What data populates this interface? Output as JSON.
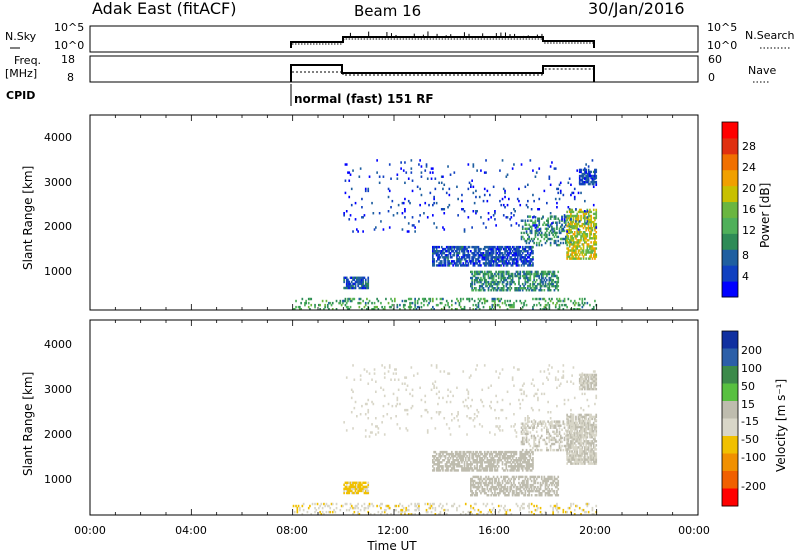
{
  "header": {
    "station": "Adak East (fitACF)",
    "beam": "Beam 16",
    "date": "30/Jan/2016"
  },
  "labels": {
    "nsky": "N.Sky",
    "freq_line1": "Freq.",
    "freq_line2": "[MHz]",
    "cpid": "CPID",
    "nsearch": "N.Search",
    "nave": "Nave",
    "cpid_text": "normal (fast) 151 RF",
    "time_axis": "Time UT",
    "slant_range": "Slant Range [km]",
    "power_label": "Power [dB]",
    "velocity_label": "Velocity [m s⁻¹]"
  },
  "noise_axis": {
    "left_ticks": [
      "10^5",
      "10^0"
    ],
    "right_ticks": [
      "10^5",
      "10^0"
    ]
  },
  "freq_axis": {
    "left_ticks": [
      "18",
      "8"
    ],
    "right_ticks": [
      "60",
      "0"
    ]
  },
  "x_ticks": [
    "00:00",
    "04:00",
    "08:00",
    "12:00",
    "16:00",
    "20:00",
    "00:00"
  ],
  "y_ticks": [
    "1000",
    "2000",
    "3000",
    "4000"
  ],
  "power_scale": {
    "ticks": [
      "4",
      "8",
      "12",
      "16",
      "20",
      "24",
      "28"
    ],
    "colors": [
      "#0000ff",
      "#1040c0",
      "#1f5fa0",
      "#2e8b57",
      "#4fb05a",
      "#6ab640",
      "#c8c000",
      "#f0a000",
      "#f07000",
      "#e03010",
      "#ff0000"
    ]
  },
  "velocity_scale": {
    "ticks": [
      "200",
      "100",
      "50",
      "15",
      "-15",
      "-50",
      "-100",
      "-200"
    ],
    "colors": [
      "#1030a0",
      "#2c5fa8",
      "#3c8a4a",
      "#58c040",
      "#bebcae",
      "#d8d6c8",
      "#f0c000",
      "#f09000",
      "#f06000",
      "#ff0000"
    ]
  },
  "chart_data": [
    {
      "type": "heatmap",
      "title": "Power",
      "xlabel": "",
      "ylabel": "Slant Range [km]",
      "xlim": [
        "00:00",
        "24:00"
      ],
      "ylim": [
        180,
        4500
      ],
      "colorbar": {
        "label": "Power [dB]",
        "range": [
          0,
          32
        ]
      },
      "data_window": [
        "08:00",
        "20:00"
      ],
      "clusters": [
        {
          "t_start": 8.0,
          "t_end": 20.0,
          "r_start": 180,
          "r_end": 450,
          "level": 12,
          "density": 0.25
        },
        {
          "t_start": 10.0,
          "t_end": 11.0,
          "r_start": 650,
          "r_end": 900,
          "level": 6,
          "density": 0.75
        },
        {
          "t_start": 13.5,
          "t_end": 17.5,
          "r_start": 1150,
          "r_end": 1600,
          "level": 5,
          "density": 0.7
        },
        {
          "t_start": 15.0,
          "t_end": 18.5,
          "r_start": 600,
          "r_end": 1050,
          "level": 10,
          "density": 0.55
        },
        {
          "t_start": 17.0,
          "t_end": 19.0,
          "r_start": 1600,
          "r_end": 2250,
          "level": 10,
          "density": 0.35
        },
        {
          "t_start": 18.8,
          "t_end": 20.0,
          "r_start": 1300,
          "r_end": 2400,
          "level": 18,
          "density": 0.6
        },
        {
          "t_start": 19.3,
          "t_end": 20.0,
          "r_start": 2950,
          "r_end": 3300,
          "level": 5,
          "density": 0.7
        },
        {
          "t_start": 10.0,
          "t_end": 20.0,
          "r_start": 1900,
          "r_end": 3500,
          "level": 4,
          "density": 0.04
        }
      ]
    },
    {
      "type": "heatmap",
      "title": "Velocity",
      "xlabel": "Time UT",
      "ylabel": "Slant Range [km]",
      "xlim": [
        "00:00",
        "24:00"
      ],
      "ylim": [
        180,
        4500
      ],
      "colorbar": {
        "label": "Velocity [m s⁻¹]",
        "range": [
          -250,
          250
        ]
      },
      "data_window": [
        "08:00",
        "20:00"
      ],
      "clusters": [
        {
          "t_start": 8.0,
          "t_end": 20.0,
          "r_start": 180,
          "r_end": 420,
          "level": -40,
          "density": 0.2
        },
        {
          "t_start": 10.0,
          "t_end": 11.0,
          "r_start": 650,
          "r_end": 900,
          "level": -60,
          "density": 0.75
        },
        {
          "t_start": 13.5,
          "t_end": 17.5,
          "r_start": 1150,
          "r_end": 1600,
          "level": 30,
          "density": 0.65
        },
        {
          "t_start": 15.0,
          "t_end": 18.5,
          "r_start": 600,
          "r_end": 1050,
          "level": 20,
          "density": 0.55
        },
        {
          "t_start": 17.0,
          "t_end": 19.0,
          "r_start": 1600,
          "r_end": 2250,
          "level": 0,
          "density": 0.35
        },
        {
          "t_start": 18.8,
          "t_end": 20.0,
          "r_start": 1300,
          "r_end": 2400,
          "level": 0,
          "density": 0.75
        },
        {
          "t_start": 19.3,
          "t_end": 20.0,
          "r_start": 2950,
          "r_end": 3300,
          "level": 0,
          "density": 0.8
        },
        {
          "t_start": 10.0,
          "t_end": 20.0,
          "r_start": 1900,
          "r_end": 3500,
          "level": -30,
          "density": 0.04
        }
      ]
    }
  ]
}
